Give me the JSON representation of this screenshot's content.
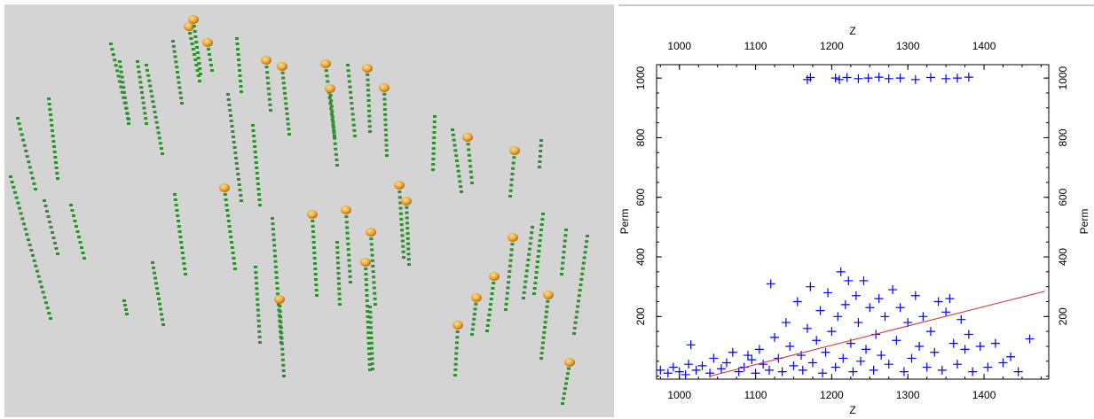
{
  "chart_data": {
    "type": "scatter",
    "x_label": "Z",
    "y_label": "Perm",
    "xlim": [
      970,
      1485
    ],
    "ylim": [
      -10,
      1045
    ],
    "xticks": [
      1000,
      1100,
      1200,
      1300,
      1400
    ],
    "yticks": [
      200,
      400,
      600,
      800,
      1000
    ],
    "series": [
      {
        "name": "Perm",
        "color": "#0000ff",
        "marker": "plus",
        "x": [
          1168,
          1172,
          1205,
          1210,
          1220,
          1235,
          1248,
          1262,
          1275,
          1290,
          1310,
          1330,
          1350,
          1365,
          1380,
          975,
          985,
          992,
          1000,
          1008,
          1012,
          1015,
          1022,
          1030,
          1040,
          1045,
          1055,
          1062,
          1070,
          1078,
          1085,
          1090,
          1095,
          1100,
          1105,
          1110,
          1118,
          1120,
          1125,
          1130,
          1135,
          1140,
          1145,
          1150,
          1155,
          1160,
          1162,
          1168,
          1172,
          1175,
          1180,
          1185,
          1188,
          1192,
          1195,
          1200,
          1205,
          1208,
          1212,
          1215,
          1218,
          1222,
          1225,
          1228,
          1232,
          1235,
          1238,
          1242,
          1245,
          1250,
          1255,
          1258,
          1262,
          1265,
          1270,
          1275,
          1280,
          1285,
          1290,
          1295,
          1300,
          1305,
          1310,
          1315,
          1320,
          1325,
          1330,
          1335,
          1340,
          1345,
          1350,
          1355,
          1360,
          1365,
          1370,
          1375,
          1380,
          1385,
          1395,
          1405,
          1415,
          1425,
          1435,
          1445,
          1460
        ],
        "values": [
          995,
          1002,
          1000,
          995,
          1002,
          998,
          1000,
          1003,
          998,
          1000,
          995,
          1002,
          998,
          1000,
          1003,
          20,
          10,
          30,
          15,
          5,
          40,
          105,
          20,
          35,
          10,
          60,
          25,
          45,
          80,
          15,
          30,
          70,
          55,
          10,
          90,
          40,
          20,
          310,
          130,
          60,
          15,
          180,
          100,
          35,
          250,
          70,
          20,
          160,
          300,
          45,
          120,
          220,
          10,
          80,
          280,
          150,
          30,
          200,
          350,
          60,
          240,
          320,
          110,
          15,
          270,
          180,
          50,
          320,
          90,
          230,
          20,
          140,
          260,
          70,
          200,
          40,
          290,
          120,
          230,
          15,
          180,
          60,
          270,
          100,
          200,
          30,
          150,
          80,
          250,
          20,
          215,
          260,
          110,
          40,
          190,
          90,
          140,
          15,
          100,
          30,
          110,
          45,
          65,
          15,
          125
        ]
      },
      {
        "name": "Trend",
        "color": "#cc3333",
        "marker": "line",
        "x": [
          1040,
          1480
        ],
        "values": [
          0,
          285
        ]
      }
    ]
  }
}
